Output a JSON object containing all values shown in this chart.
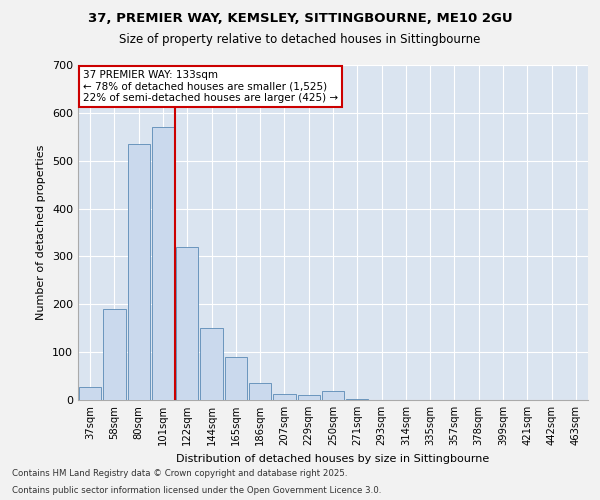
{
  "title1": "37, PREMIER WAY, KEMSLEY, SITTINGBOURNE, ME10 2GU",
  "title2": "Size of property relative to detached houses in Sittingbourne",
  "xlabel": "Distribution of detached houses by size in Sittingbourne",
  "ylabel": "Number of detached properties",
  "categories": [
    "37sqm",
    "58sqm",
    "80sqm",
    "101sqm",
    "122sqm",
    "144sqm",
    "165sqm",
    "186sqm",
    "207sqm",
    "229sqm",
    "250sqm",
    "271sqm",
    "293sqm",
    "314sqm",
    "335sqm",
    "357sqm",
    "378sqm",
    "399sqm",
    "421sqm",
    "442sqm",
    "463sqm"
  ],
  "values": [
    28,
    190,
    535,
    570,
    320,
    150,
    90,
    35,
    13,
    10,
    18,
    3,
    0,
    0,
    0,
    0,
    0,
    0,
    0,
    0,
    0
  ],
  "bar_color": "#cad9ed",
  "bar_edge_color": "#5a8ab5",
  "vline_color": "#cc0000",
  "vline_pos": 3.5,
  "annotation_text": "37 PREMIER WAY: 133sqm\n← 78% of detached houses are smaller (1,525)\n22% of semi-detached houses are larger (425) →",
  "annotation_box_facecolor": "#ffffff",
  "annotation_box_edgecolor": "#cc0000",
  "ylim": [
    0,
    700
  ],
  "yticks": [
    0,
    100,
    200,
    300,
    400,
    500,
    600,
    700
  ],
  "background_color": "#dae4f0",
  "grid_color": "#ffffff",
  "footer1": "Contains HM Land Registry data © Crown copyright and database right 2025.",
  "footer2": "Contains public sector information licensed under the Open Government Licence 3.0."
}
